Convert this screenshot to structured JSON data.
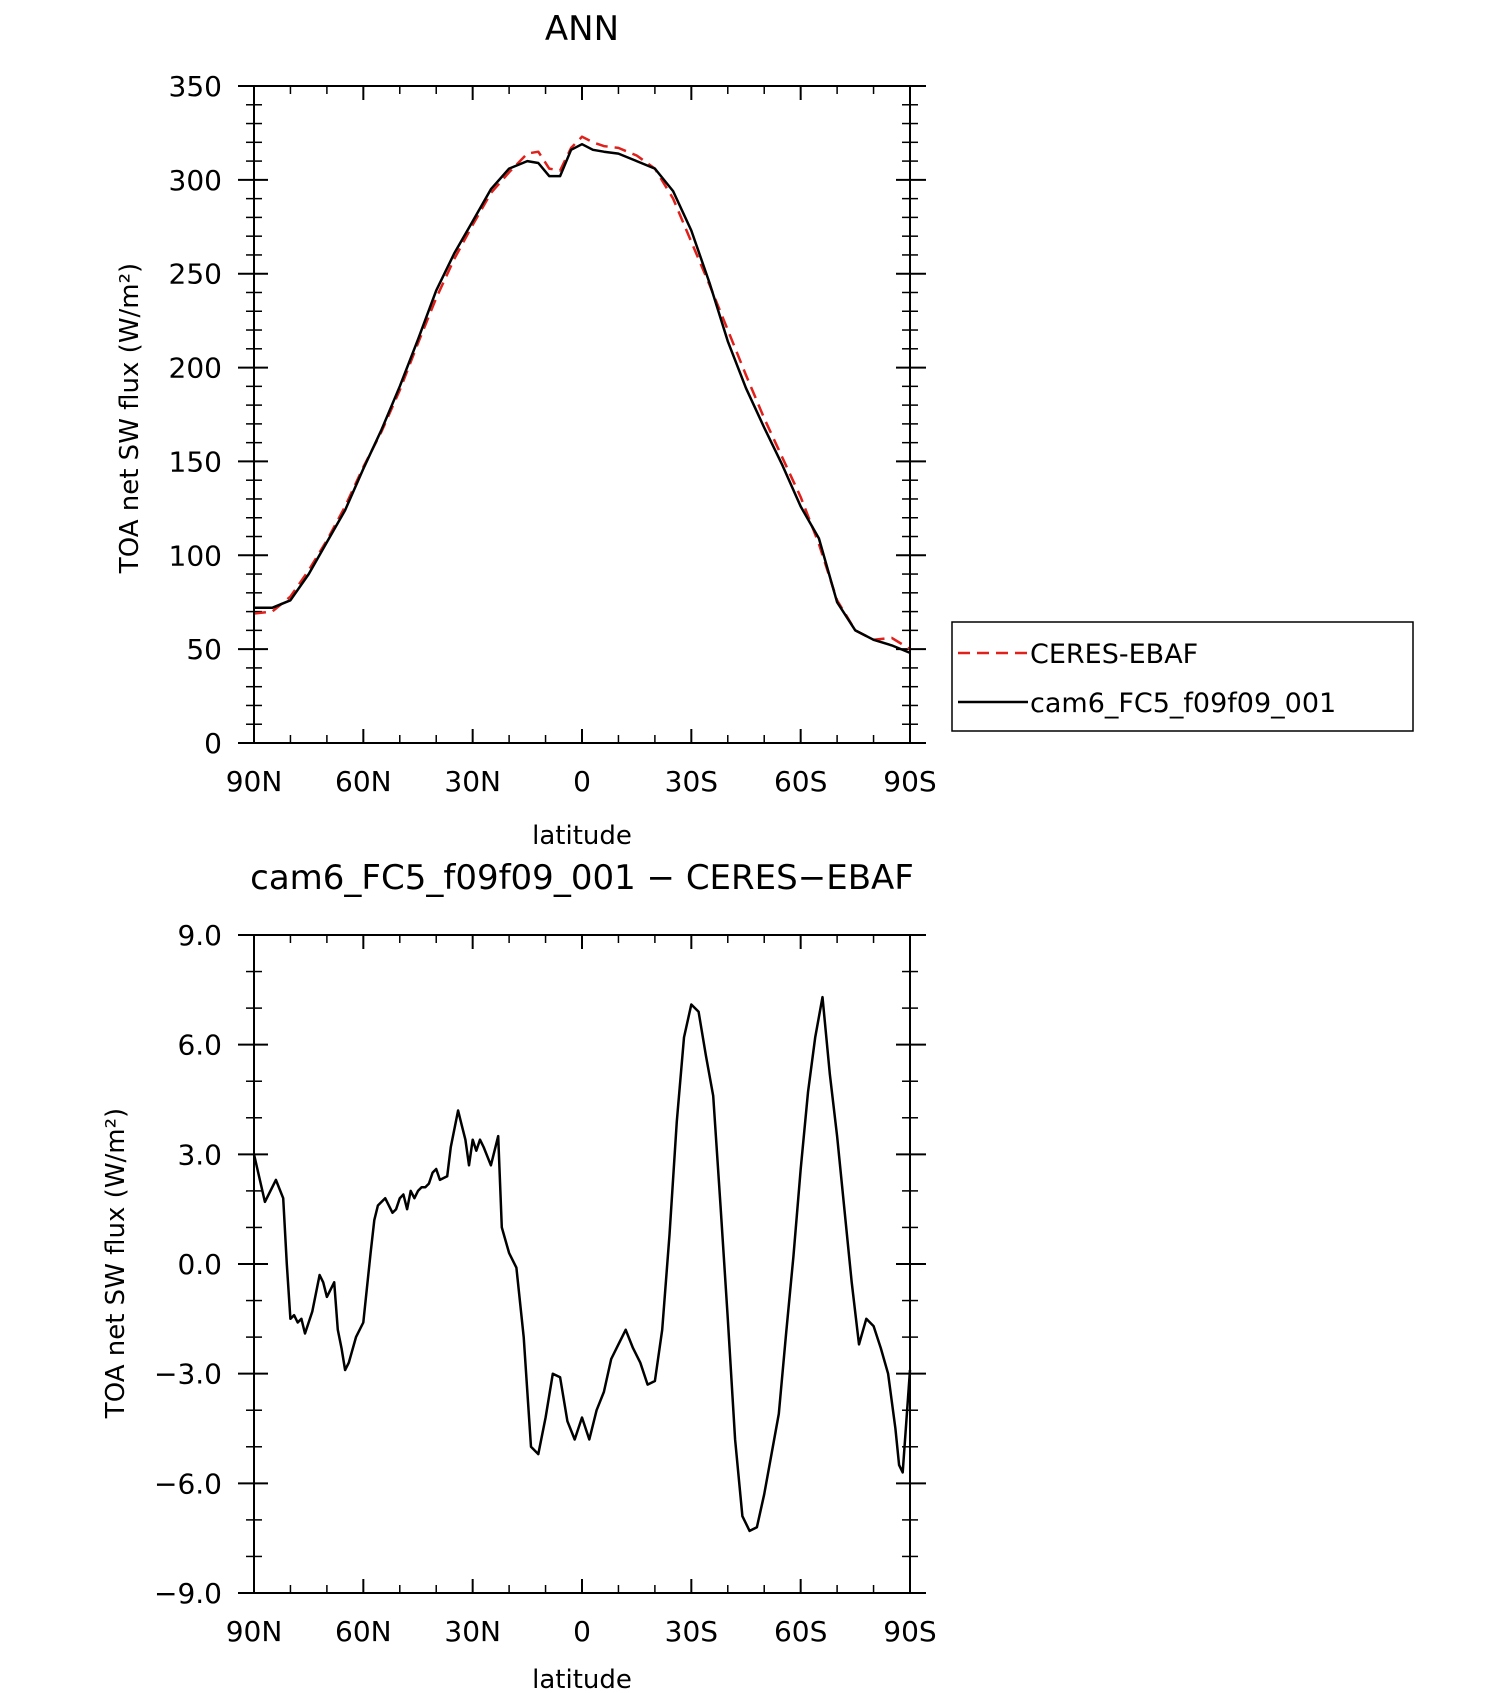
{
  "chart_data": [
    {
      "type": "line",
      "title": "ANN",
      "xlabel": "latitude",
      "ylabel": "TOA net SW flux (W/m²)",
      "x_ticks": [
        "90N",
        "60N",
        "30N",
        "0",
        "30S",
        "60S",
        "90S"
      ],
      "y_ticks": [
        "0",
        "50",
        "100",
        "150",
        "200",
        "250",
        "300",
        "350"
      ],
      "xlim": [
        90,
        -90
      ],
      "ylim": [
        0,
        350
      ],
      "grid": false,
      "legend_position": "right",
      "series": [
        {
          "name": "CERES-EBAF",
          "color": "#e0201b",
          "dash": "dashed",
          "x": [
            90,
            85,
            80,
            75,
            70,
            65,
            60,
            55,
            50,
            45,
            40,
            35,
            30,
            25,
            20,
            15,
            12,
            9,
            6,
            3,
            0,
            -3,
            -6,
            -10,
            -15,
            -20,
            -25,
            -30,
            -35,
            -40,
            -45,
            -50,
            -55,
            -60,
            -65,
            -70,
            -75,
            -80,
            -85,
            -90
          ],
          "y": [
            69,
            70,
            78,
            92,
            108,
            126,
            147,
            166,
            188,
            213,
            237,
            258,
            276,
            293,
            304,
            314,
            315,
            306,
            305,
            317,
            323,
            320,
            318,
            317,
            313,
            306,
            290,
            267,
            244,
            220,
            196,
            173,
            152,
            131,
            106,
            76,
            60,
            55,
            56,
            50
          ]
        },
        {
          "name": "cam6_FC5_f09f09_001",
          "color": "#000000",
          "dash": "solid",
          "x": [
            90,
            85,
            80,
            75,
            70,
            65,
            60,
            55,
            50,
            45,
            40,
            35,
            30,
            25,
            20,
            15,
            12,
            9,
            6,
            3,
            0,
            -3,
            -6,
            -10,
            -15,
            -20,
            -25,
            -30,
            -35,
            -40,
            -45,
            -50,
            -55,
            -60,
            -65,
            -70,
            -75,
            -80,
            -85,
            -90
          ],
          "y": [
            72,
            72,
            76,
            90,
            107,
            124,
            146,
            167,
            190,
            215,
            241,
            261,
            278,
            295,
            306,
            310,
            309,
            302,
            302,
            316,
            319,
            316,
            315,
            314,
            310,
            306,
            294,
            273,
            245,
            214,
            189,
            168,
            148,
            126,
            109,
            75,
            60,
            55,
            52,
            48
          ]
        }
      ]
    },
    {
      "type": "line",
      "title": "cam6_FC5_f09f09_001 − CERES−EBAF",
      "xlabel": "latitude",
      "ylabel": "TOA net SW flux (W/m²)",
      "x_ticks": [
        "90N",
        "60N",
        "30N",
        "0",
        "30S",
        "60S",
        "90S"
      ],
      "y_ticks": [
        "−9.0",
        "−6.0",
        "−3.0",
        "0.0",
        "3.0",
        "6.0",
        "9.0"
      ],
      "xlim": [
        90,
        -90
      ],
      "ylim": [
        -9,
        9
      ],
      "grid": false,
      "series": [
        {
          "color": "#000000",
          "dash": "solid",
          "x": [
            90,
            87,
            84,
            82,
            81,
            80,
            79,
            78,
            77,
            76,
            74,
            72,
            71,
            70,
            68,
            67,
            66,
            65,
            64,
            62,
            60,
            58,
            57,
            56,
            54,
            52,
            51,
            50,
            49,
            48,
            47,
            46,
            45,
            44,
            43,
            42,
            41,
            40,
            39,
            37,
            36,
            34,
            33,
            32,
            31,
            30,
            29,
            28,
            27,
            25,
            23,
            22,
            20,
            18,
            16,
            14,
            12,
            10,
            8,
            6,
            4,
            2,
            0,
            -2,
            -4,
            -6,
            -8,
            -10,
            -12,
            -14,
            -16,
            -18,
            -20,
            -22,
            -24,
            -26,
            -28,
            -30,
            -32,
            -34,
            -36,
            -38,
            -40,
            -42,
            -44,
            -46,
            -48,
            -50,
            -52,
            -54,
            -56,
            -58,
            -60,
            -62,
            -64,
            -66,
            -68,
            -70,
            -72,
            -74,
            -76,
            -78,
            -80,
            -82,
            -84,
            -86,
            -87,
            -88,
            -90
          ],
          "y": [
            3.0,
            1.7,
            2.3,
            1.8,
            0.0,
            -1.5,
            -1.4,
            -1.6,
            -1.5,
            -1.9,
            -1.3,
            -0.3,
            -0.5,
            -0.9,
            -0.5,
            -1.8,
            -2.3,
            -2.9,
            -2.7,
            -2.0,
            -1.6,
            0.3,
            1.2,
            1.6,
            1.8,
            1.4,
            1.5,
            1.8,
            1.9,
            1.5,
            2.0,
            1.8,
            2.0,
            2.1,
            2.1,
            2.2,
            2.5,
            2.6,
            2.3,
            2.4,
            3.2,
            4.2,
            3.8,
            3.4,
            2.7,
            3.4,
            3.1,
            3.4,
            3.2,
            2.7,
            3.5,
            1.0,
            0.3,
            -0.1,
            -2.0,
            -5.0,
            -5.2,
            -4.2,
            -3.0,
            -3.1,
            -4.3,
            -4.8,
            -4.2,
            -4.8,
            -4.0,
            -3.5,
            -2.6,
            -2.2,
            -1.8,
            -2.3,
            -2.7,
            -3.3,
            -3.2,
            -1.8,
            0.8,
            3.9,
            6.2,
            7.1,
            6.9,
            5.7,
            4.6,
            1.6,
            -1.5,
            -4.8,
            -6.9,
            -7.3,
            -7.2,
            -6.3,
            -5.2,
            -4.1,
            -1.9,
            0.2,
            2.6,
            4.7,
            6.2,
            7.3,
            5.2,
            3.5,
            1.5,
            -0.5,
            -2.2,
            -1.5,
            -1.7,
            -2.3,
            -3.0,
            -4.5,
            -5.5,
            -5.7,
            -2.9
          ]
        }
      ]
    }
  ]
}
